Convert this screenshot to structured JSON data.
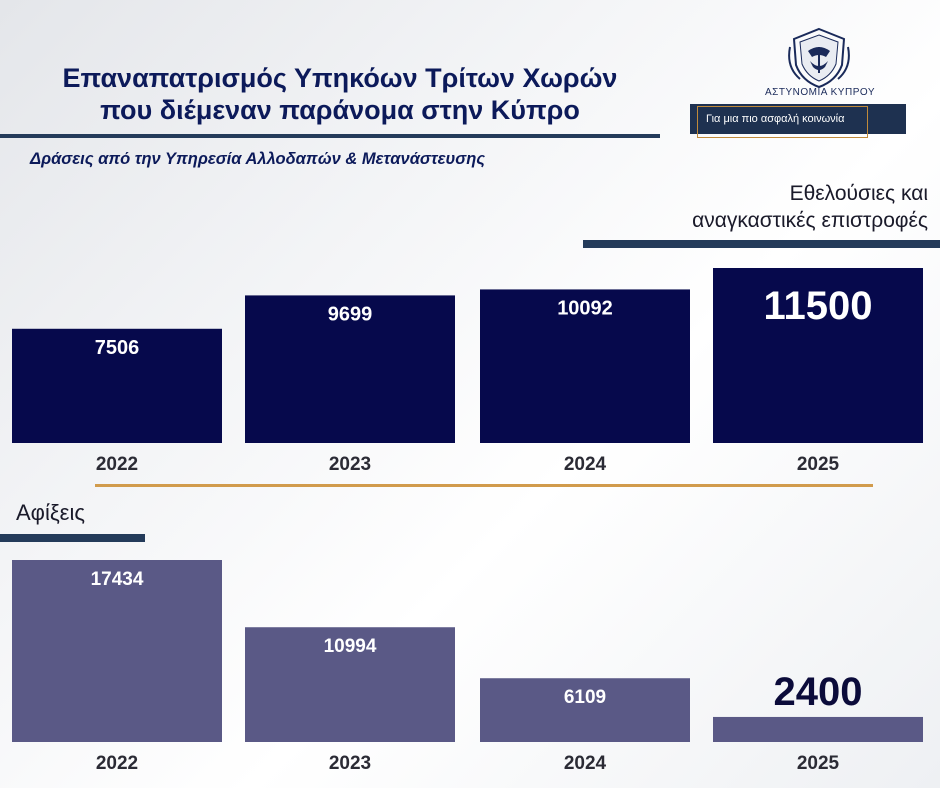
{
  "header": {
    "title_line1": "Επαναπατρισμός Υπηκόων Τρίτων Χωρών",
    "title_line2": "που διέμεναν παράνομα στην Κύπρο",
    "subtitle": "Δράσεις από την Υπηρεσία Αλλοδαπών & Μετανάστευσης"
  },
  "brand": {
    "org_name": "ΑΣΤΥΝΟΜΙΑ ΚΥΠΡΟΥ",
    "slogan": "Για μια πιο ασφαλή κοινωνία",
    "logo_icon": "police-crest-icon"
  },
  "colors": {
    "returns_bar": "#06094c",
    "arrivals_bar": "#5a5986",
    "highlight_value": "#0b0b3a",
    "accent_gold": "#d19b4c",
    "accent_navy": "#243b5a"
  },
  "chart_data": [
    {
      "type": "bar",
      "title": "Εθελούσιες και αναγκαστικές επιστροφές",
      "title_line1": "Εθελούσιες και",
      "title_line2": "αναγκαστικές επιστροφές",
      "categories": [
        "2022",
        "2023",
        "2024",
        "2025"
      ],
      "values": [
        7506,
        9699,
        10092,
        11500
      ],
      "labels": [
        "7506",
        "9699",
        "10092",
        "11500"
      ],
      "highlight": "2025"
    },
    {
      "type": "bar",
      "title": "Αφίξεις",
      "categories": [
        "2022",
        "2023",
        "2024",
        "2025"
      ],
      "values": [
        17434,
        10994,
        6109,
        2400
      ],
      "labels": [
        "17434",
        "10994",
        "6109",
        "2400"
      ],
      "highlight": "2025"
    }
  ]
}
